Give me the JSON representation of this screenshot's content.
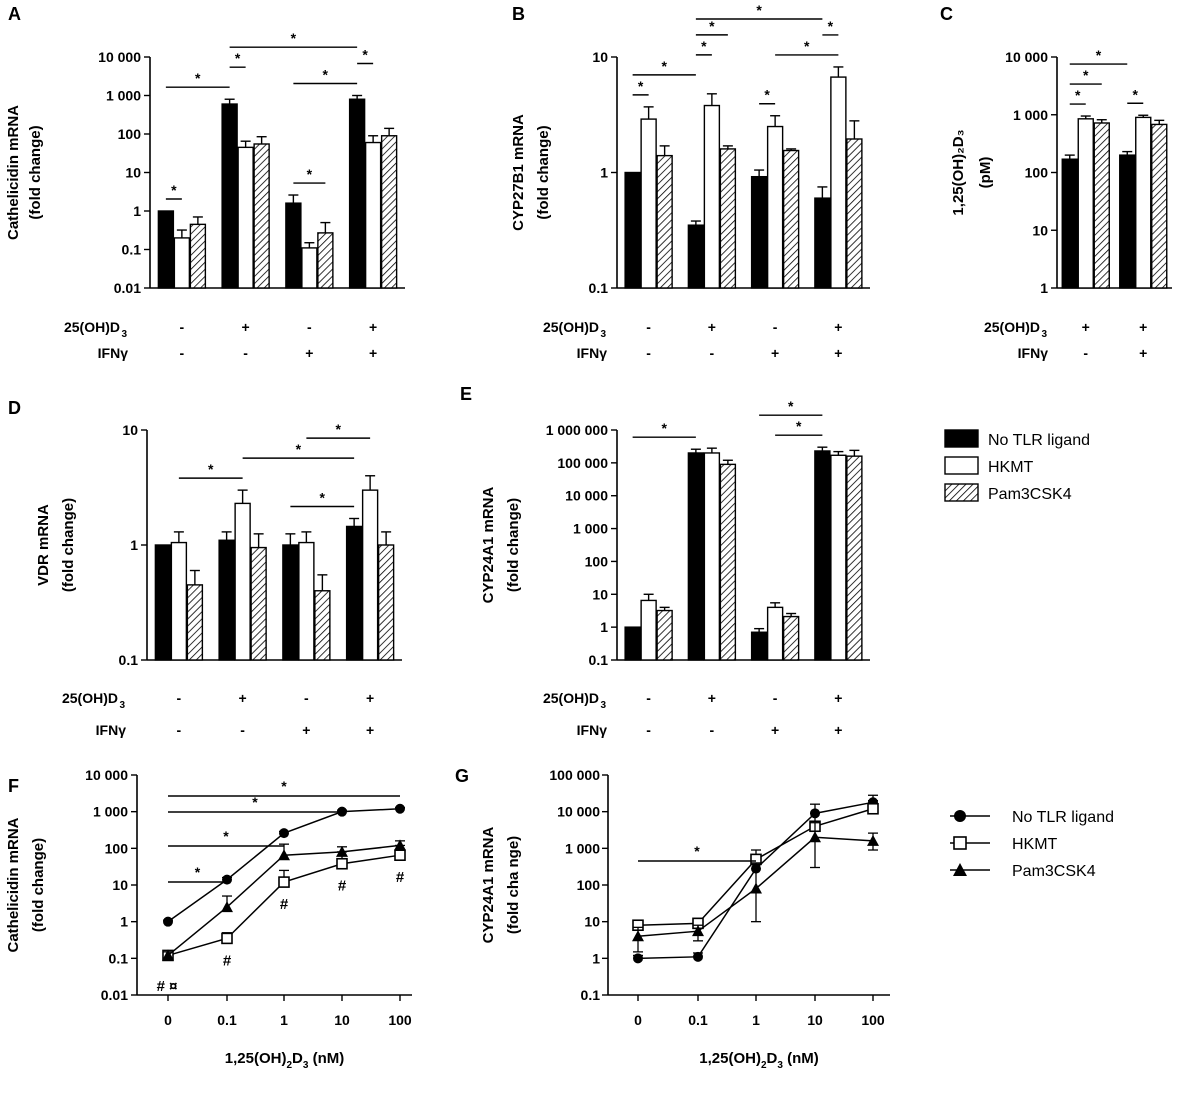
{
  "chart_data": [
    {
      "id": "A",
      "type": "bar",
      "label": "A",
      "ylabel_lines": [
        "Cathelicidin mRNA",
        "(fold change)"
      ],
      "ylog": true,
      "ylim": [
        0.01,
        10000
      ],
      "yticks": [
        "0.01",
        "0.1",
        "1",
        "10",
        "100",
        "1 000",
        "10 000"
      ],
      "groups": 4,
      "series_names": [
        "No TLR ligand",
        "HKMT",
        "Pam3CSK4"
      ],
      "values": [
        [
          1,
          0.2,
          0.45
        ],
        [
          600,
          45,
          55
        ],
        [
          1.6,
          0.11,
          0.27
        ],
        [
          800,
          60,
          90
        ]
      ],
      "errors_upper": [
        [
          1,
          0.32,
          0.7
        ],
        [
          800,
          65,
          85
        ],
        [
          2.6,
          0.15,
          0.5
        ],
        [
          1000,
          90,
          140
        ]
      ],
      "conditions": [
        {
          "label": "25(OH)D",
          "sub": "3",
          "values": [
            "-",
            "+",
            "-",
            "+"
          ]
        },
        {
          "label": "IFNγ",
          "values": [
            "-",
            "-",
            "+",
            "+"
          ]
        }
      ],
      "sig": [
        {
          "from": [
            0,
            0
          ],
          "to": [
            0,
            1
          ],
          "label": "*"
        },
        {
          "from": [
            0,
            0
          ],
          "to": [
            1,
            0
          ],
          "label": "*"
        },
        {
          "from": [
            1,
            0
          ],
          "to": [
            1,
            1
          ],
          "label": "*"
        },
        {
          "from": [
            1,
            0
          ],
          "to": [
            3,
            0
          ],
          "label": "*"
        },
        {
          "from": [
            2,
            0
          ],
          "to": [
            2,
            2
          ],
          "label": "*"
        },
        {
          "from": [
            2,
            0
          ],
          "to": [
            3,
            0
          ],
          "label": "*"
        },
        {
          "from": [
            3,
            0
          ],
          "to": [
            3,
            1
          ],
          "label": "*"
        }
      ]
    },
    {
      "id": "B",
      "type": "bar",
      "label": "B",
      "ylabel_lines": [
        "CYP27B1 mRNA",
        "(fold change)"
      ],
      "ylog": true,
      "ylim": [
        0.1,
        10
      ],
      "yticks": [
        "0.1",
        "1",
        "10"
      ],
      "groups": 4,
      "series_names": [
        "No TLR ligand",
        "HKMT",
        "Pam3CSK4"
      ],
      "values": [
        [
          1,
          2.9,
          1.4
        ],
        [
          0.35,
          3.8,
          1.6
        ],
        [
          0.92,
          2.5,
          1.55
        ],
        [
          0.6,
          6.7,
          1.95
        ]
      ],
      "errors_upper": [
        [
          1,
          3.7,
          1.7
        ],
        [
          0.38,
          4.8,
          1.7
        ],
        [
          1.05,
          3.1,
          1.6
        ],
        [
          0.75,
          8.2,
          2.8
        ]
      ],
      "conditions": [
        {
          "label": "25(OH)D",
          "sub": "3",
          "values": [
            "-",
            "+",
            "-",
            "+"
          ]
        },
        {
          "label": "IFNγ",
          "values": [
            "-",
            "-",
            "+",
            "+"
          ]
        }
      ],
      "sig": [
        {
          "from": [
            0,
            0
          ],
          "to": [
            0,
            1
          ],
          "label": "*"
        },
        {
          "from": [
            0,
            0
          ],
          "to": [
            1,
            0
          ],
          "label": "*"
        },
        {
          "from": [
            1,
            0
          ],
          "to": [
            1,
            1
          ],
          "label": "*"
        },
        {
          "from": [
            1,
            0
          ],
          "to": [
            1,
            2
          ],
          "label": "*"
        },
        {
          "from": [
            1,
            0
          ],
          "to": [
            3,
            0
          ],
          "label": "*"
        },
        {
          "from": [
            2,
            0
          ],
          "to": [
            2,
            1
          ],
          "label": "*"
        },
        {
          "from": [
            2,
            1
          ],
          "to": [
            3,
            1
          ],
          "label": "*"
        },
        {
          "from": [
            3,
            0
          ],
          "to": [
            3,
            1
          ],
          "label": "*"
        }
      ]
    },
    {
      "id": "C",
      "type": "bar",
      "label": "C",
      "ylabel_lines": [
        "1,25(OH)₂D₃",
        "(pM)"
      ],
      "ylog": true,
      "ylim": [
        1,
        10000
      ],
      "yticks": [
        "1",
        "10",
        "100",
        "1 000",
        "10 000"
      ],
      "groups": 2,
      "series_names": [
        "No TLR ligand",
        "HKMT",
        "Pam3CSK4"
      ],
      "values": [
        [
          170,
          850,
          720
        ],
        [
          200,
          900,
          680
        ]
      ],
      "errors_upper": [
        [
          200,
          950,
          820
        ],
        [
          230,
          980,
          800
        ]
      ],
      "conditions": [
        {
          "label": "25(OH)D",
          "sub": "3",
          "values": [
            "+",
            "+"
          ]
        },
        {
          "label": "IFNγ",
          "values": [
            "-",
            "+"
          ]
        }
      ],
      "sig": [
        {
          "from": [
            0,
            0
          ],
          "to": [
            0,
            1
          ],
          "label": "*"
        },
        {
          "from": [
            0,
            0
          ],
          "to": [
            0,
            2
          ],
          "label": "*"
        },
        {
          "from": [
            0,
            0
          ],
          "to": [
            1,
            0
          ],
          "label": "*"
        },
        {
          "from": [
            1,
            0
          ],
          "to": [
            1,
            1
          ],
          "label": "*"
        }
      ]
    },
    {
      "id": "D",
      "type": "bar",
      "label": "D",
      "ylabel_lines": [
        "VDR mRNA",
        "(fold change)"
      ],
      "ylog": true,
      "ylim": [
        0.1,
        10
      ],
      "yticks": [
        "0.1",
        "1",
        "10"
      ],
      "groups": 4,
      "series_names": [
        "No TLR ligand",
        "HKMT",
        "Pam3CSK4"
      ],
      "values": [
        [
          1,
          1.05,
          0.45
        ],
        [
          1.1,
          2.3,
          0.95
        ],
        [
          1.0,
          1.05,
          0.4
        ],
        [
          1.45,
          3.0,
          1.0
        ]
      ],
      "errors_upper": [
        [
          1,
          1.3,
          0.6
        ],
        [
          1.3,
          3.0,
          1.25
        ],
        [
          1.25,
          1.3,
          0.55
        ],
        [
          1.7,
          4.0,
          1.3
        ]
      ],
      "conditions": [
        {
          "label": "25(OH)D",
          "sub": "3",
          "values": [
            "-",
            "+",
            "-",
            "+"
          ]
        },
        {
          "label": "IFNγ",
          "values": [
            "-",
            "-",
            "+",
            "+"
          ]
        }
      ],
      "sig": [
        {
          "from": [
            0,
            1
          ],
          "to": [
            1,
            1
          ],
          "label": "*"
        },
        {
          "from": [
            1,
            1
          ],
          "to": [
            3,
            0
          ],
          "label": "*"
        },
        {
          "from": [
            2,
            0
          ],
          "to": [
            3,
            0
          ],
          "label": "*"
        },
        {
          "from": [
            2,
            1
          ],
          "to": [
            3,
            1
          ],
          "label": "*"
        }
      ]
    },
    {
      "id": "E",
      "type": "bar",
      "label": "E",
      "ylabel_lines": [
        "CYP24A1 mRNA",
        "(fold change)"
      ],
      "ylog": true,
      "ylim": [
        0.1,
        1000000
      ],
      "yticks": [
        "0.1",
        "1",
        "10",
        "100",
        "1 000",
        "10 000",
        "100 000",
        "1 000 000"
      ],
      "groups": 4,
      "series_names": [
        "No TLR ligand",
        "HKMT",
        "Pam3CSK4"
      ],
      "values": [
        [
          1,
          6.5,
          3.2
        ],
        [
          200000,
          200000,
          90000
        ],
        [
          0.7,
          4.0,
          2.1
        ],
        [
          230000,
          170000,
          160000
        ]
      ],
      "errors_upper": [
        [
          1,
          10,
          4
        ],
        [
          260000,
          280000,
          120000
        ],
        [
          0.9,
          5.5,
          2.6
        ],
        [
          300000,
          220000,
          240000
        ]
      ],
      "conditions": [
        {
          "label": "25(OH)D",
          "sub": "3",
          "values": [
            "-",
            "+",
            "-",
            "+"
          ]
        },
        {
          "label": "IFNγ",
          "values": [
            "-",
            "-",
            "+",
            "+"
          ]
        }
      ],
      "sig": [
        {
          "from": [
            0,
            0
          ],
          "to": [
            1,
            0
          ],
          "label": "*"
        },
        {
          "from": [
            2,
            1
          ],
          "to": [
            3,
            0
          ],
          "label": "*"
        },
        {
          "from": [
            2,
            0
          ],
          "to": [
            3,
            0
          ],
          "label": "*"
        }
      ]
    },
    {
      "id": "F",
      "type": "line",
      "label": "F",
      "ylabel_lines": [
        "Cathelicidin mRNA",
        "(fold change)"
      ],
      "ylog": true,
      "ylim": [
        0.01,
        10000
      ],
      "yticks": [
        "0.01",
        "0.1",
        "1",
        "10",
        "100",
        "1 000",
        "10 000"
      ],
      "x": [
        "0",
        "0.1",
        "1",
        "10",
        "100"
      ],
      "xlabel": "1,25(OH)",
      "xlabel_sub": "2",
      "xlabel_rest": "D",
      "xlabel_sub2": "3",
      "xlabel_end": " (nM)",
      "series": [
        {
          "name": "No TLR ligand",
          "marker": "circle",
          "values": [
            1,
            14,
            260,
            1000,
            1200
          ],
          "err": [
            1.1,
            16,
            290,
            1100,
            1300
          ]
        },
        {
          "name": "HKMT",
          "marker": "square",
          "values": [
            0.12,
            0.35,
            12,
            38,
            65
          ],
          "err": [
            0.15,
            0.5,
            25,
            80,
            120
          ]
        },
        {
          "name": "Pam3CSK4",
          "marker": "triangle",
          "values": [
            0.12,
            2.5,
            65,
            80,
            120
          ],
          "err": [
            0.15,
            5,
            130,
            110,
            160
          ]
        }
      ],
      "sig": [
        {
          "from": 0,
          "to": 1,
          "label": "*"
        },
        {
          "from": 0,
          "to": 2,
          "label": "*"
        },
        {
          "from": 0,
          "to": 3,
          "label": "*"
        },
        {
          "from": 0,
          "to": 4,
          "label": "*"
        }
      ],
      "markers": [
        {
          "x": 0,
          "label": "# ¤"
        },
        {
          "x": 1,
          "label": "#"
        },
        {
          "x": 2,
          "label": "#"
        },
        {
          "x": 3,
          "label": "#"
        },
        {
          "x": 4,
          "label": "#"
        }
      ]
    },
    {
      "id": "G",
      "type": "line",
      "label": "G",
      "ylabel_lines": [
        "CYP24A1 mRNA",
        "(fold cha nge)"
      ],
      "ylog": true,
      "ylim": [
        0.1,
        100000
      ],
      "yticks": [
        "0.1",
        "1",
        "10",
        "100",
        "1 000",
        "10 000",
        "100 000"
      ],
      "x": [
        "0",
        "0.1",
        "1",
        "10",
        "100"
      ],
      "xlabel": "1,25(OH)",
      "xlabel_sub": "2",
      "xlabel_rest": "D",
      "xlabel_sub2": "3",
      "xlabel_end": " (nM)",
      "series": [
        {
          "name": "No TLR ligand",
          "marker": "circle",
          "values": [
            1,
            1.1,
            280,
            9000,
            18000
          ],
          "err": [
            1.2,
            1.4,
            600,
            16000,
            28000
          ]
        },
        {
          "name": "HKMT",
          "marker": "square",
          "values": [
            8,
            9,
            500,
            4000,
            12000
          ],
          "err": [
            11,
            12,
            900,
            9000,
            20000
          ]
        },
        {
          "name": "Pam3CSK4",
          "marker": "triangle",
          "values": [
            4,
            5.5,
            80,
            2000,
            1600
          ],
          "err": [
            7,
            8,
            400,
            5000,
            2600
          ],
          "err_low": [
            1.5,
            3,
            10,
            300,
            900
          ]
        }
      ],
      "sig": [
        {
          "from": 0,
          "to": 2,
          "label": "*"
        }
      ]
    }
  ],
  "legend_bar": [
    {
      "name": "No TLR ligand",
      "style": "solid"
    },
    {
      "name": "HKMT",
      "style": "open"
    },
    {
      "name": "Pam3CSK4",
      "style": "hatched"
    }
  ],
  "legend_line": [
    {
      "name": "No TLR ligand",
      "marker": "circle"
    },
    {
      "name": "HKMT",
      "marker": "square"
    },
    {
      "name": "Pam3CSK4",
      "marker": "triangle"
    }
  ]
}
